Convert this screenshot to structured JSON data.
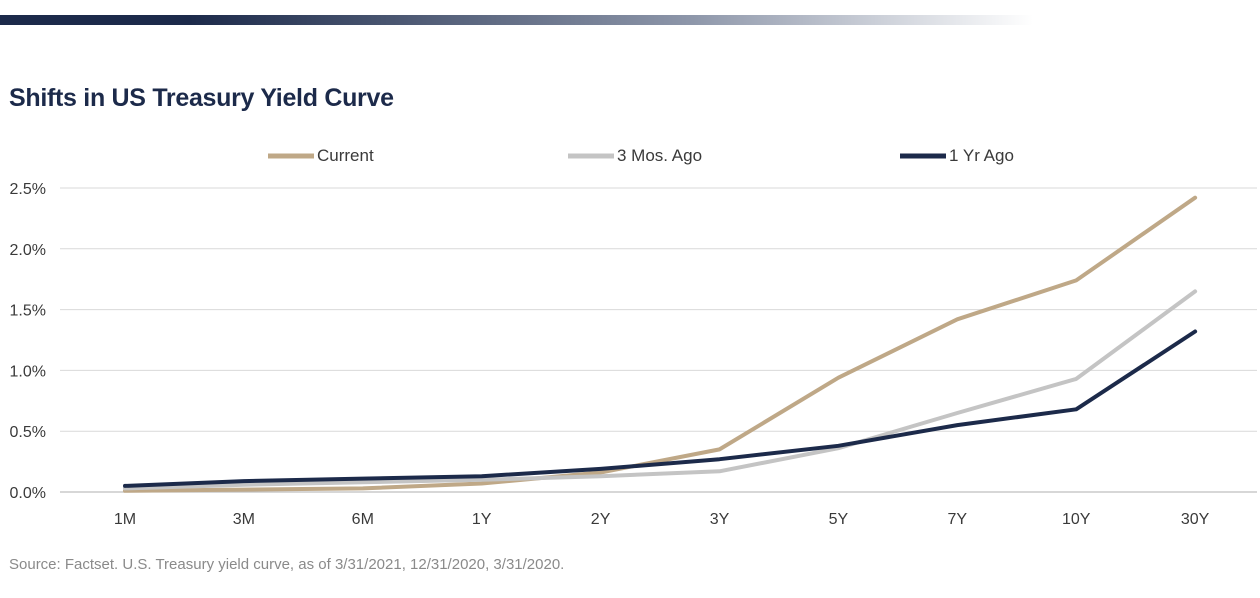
{
  "title": "Shifts in US Treasury Yield Curve",
  "source": "Source: Factset. U.S. Treasury yield curve, as of 3/31/2021, 12/31/2020, 3/31/2020.",
  "colors": {
    "top_bar_start": "#1c2a4a",
    "top_bar_end": "#ffffff",
    "grid": "#d9d9d9",
    "axis": "#bfbfbf"
  },
  "chart_data": {
    "type": "line",
    "categories": [
      "1M",
      "3M",
      "6M",
      "1Y",
      "2Y",
      "3Y",
      "5Y",
      "7Y",
      "10Y",
      "30Y"
    ],
    "series": [
      {
        "name": "Current",
        "color": "#bfa887",
        "values": [
          0.01,
          0.02,
          0.03,
          0.07,
          0.16,
          0.35,
          0.94,
          1.42,
          1.74,
          2.42
        ]
      },
      {
        "name": "3 Mos. Ago",
        "color": "#c4c4c4",
        "values": [
          0.03,
          0.06,
          0.08,
          0.1,
          0.13,
          0.17,
          0.36,
          0.65,
          0.93,
          1.65
        ]
      },
      {
        "name": "1 Yr Ago",
        "color": "#1c2a4a",
        "values": [
          0.05,
          0.09,
          0.11,
          0.13,
          0.19,
          0.27,
          0.38,
          0.55,
          0.68,
          1.32
        ]
      }
    ],
    "yticks": [
      "0.0%",
      "0.5%",
      "1.0%",
      "1.5%",
      "2.0%",
      "2.5%"
    ],
    "ylim": [
      0,
      2.5
    ],
    "grid": true,
    "legend_position": "top-center"
  }
}
